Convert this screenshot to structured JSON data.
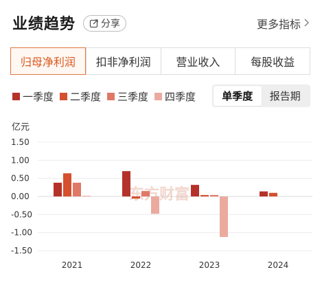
{
  "header": {
    "title": "业绩趋势",
    "share_label": "分享",
    "more_label": "更多指标"
  },
  "tabs": [
    {
      "label": "归母净利润",
      "active": true
    },
    {
      "label": "扣非净利润",
      "active": false
    },
    {
      "label": "营业收入",
      "active": false
    },
    {
      "label": "每股收益",
      "active": false
    }
  ],
  "period_toggle": {
    "options": [
      "单季度",
      "报告期"
    ],
    "selected": "单季度"
  },
  "colors": {
    "accent": "#d9591f",
    "q1": "#b5322a",
    "q2": "#d4502e",
    "q3": "#e07868",
    "q4": "#ebaa9e",
    "watermark": "#e9b7a8"
  },
  "watermark": "东方财富",
  "chart_data": {
    "type": "bar",
    "unit": "亿元",
    "categories": [
      "2021",
      "2022",
      "2023",
      "2024"
    ],
    "yticks": [
      "1.50",
      "1.00",
      "0.50",
      "0.00",
      "-0.50",
      "-1.00",
      "-1.50"
    ],
    "ylim": [
      -1.5,
      1.5
    ],
    "grid": true,
    "legend_position": "top-left",
    "series": [
      {
        "name": "一季度",
        "values": [
          0.38,
          0.7,
          0.32,
          0.14
        ]
      },
      {
        "name": "二季度",
        "values": [
          0.64,
          -0.06,
          0.04,
          0.1
        ]
      },
      {
        "name": "三季度",
        "values": [
          0.38,
          0.15,
          0.04,
          null
        ]
      },
      {
        "name": "四季度",
        "values": [
          0.02,
          -0.48,
          -1.12,
          null
        ]
      }
    ]
  }
}
